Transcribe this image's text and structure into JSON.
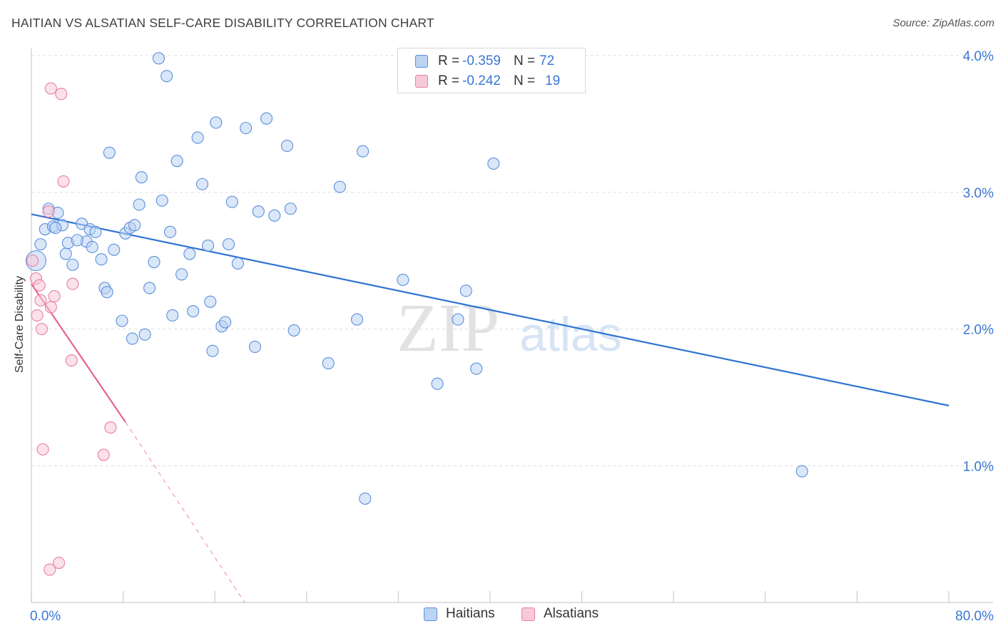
{
  "title": "HAITIAN VS ALSATIAN SELF-CARE DISABILITY CORRELATION CHART",
  "source": "Source: ZipAtlas.com",
  "watermark": {
    "zip": "ZIP",
    "atlas": "atlas"
  },
  "legend": {
    "haitians": {
      "r_label": "R =",
      "r_value": "-0.359",
      "n_label": "N =",
      "n_value": "72"
    },
    "alsatians": {
      "r_label": "R =",
      "r_value": "-0.242",
      "n_label": "N =",
      "n_value": "19"
    }
  },
  "bottom_legend": {
    "haitians": "Haitians",
    "alsatians": "Alsatians"
  },
  "chart_data": {
    "type": "scatter",
    "title": "HAITIAN VS ALSATIAN SELF-CARE DISABILITY CORRELATION CHART",
    "xlabel": "",
    "ylabel": "Self-Care Disability",
    "xlim": [
      0,
      80
    ],
    "ylim": [
      0,
      4.2
    ],
    "x_tick_labels": [
      "0.0%",
      "80.0%"
    ],
    "y_ticks": [
      1.0,
      2.0,
      3.0,
      4.0
    ],
    "y_tick_labels": [
      "1.0%",
      "2.0%",
      "3.0%",
      "4.0%"
    ],
    "colors": {
      "haitians": "#5b8fdc",
      "haitians_fill": "#bcd3f2",
      "alsatians": "#e87fa0",
      "alsatians_fill": "#f7c9d7",
      "haitians_line": "#2f74d0",
      "alsatians_line": "#e8628f",
      "tick_text": "#3a78d4",
      "grid": "#dddddd"
    },
    "series": [
      {
        "name": "Haitians",
        "trend": {
          "x0": 0,
          "y0": 2.84,
          "x1": 80,
          "y1": 1.44
        },
        "points": [
          [
            0.4,
            2.5,
            "big"
          ],
          [
            0.8,
            2.62
          ],
          [
            1.2,
            2.73
          ],
          [
            1.5,
            2.88
          ],
          [
            1.9,
            2.75
          ],
          [
            2.3,
            2.85
          ],
          [
            2.7,
            2.76
          ],
          [
            3.0,
            2.55
          ],
          [
            3.2,
            2.63
          ],
          [
            3.6,
            2.47
          ],
          [
            4.4,
            2.77
          ],
          [
            4.8,
            2.64
          ],
          [
            5.1,
            2.73
          ],
          [
            5.3,
            2.6
          ],
          [
            5.6,
            2.71
          ],
          [
            6.1,
            2.51
          ],
          [
            6.4,
            2.3
          ],
          [
            6.6,
            2.27
          ],
          [
            6.8,
            3.29
          ],
          [
            7.2,
            2.58
          ],
          [
            7.9,
            2.06
          ],
          [
            8.2,
            2.7
          ],
          [
            8.6,
            2.74
          ],
          [
            8.8,
            1.93
          ],
          [
            9.4,
            2.91
          ],
          [
            9.6,
            3.11
          ],
          [
            9.9,
            1.96
          ],
          [
            10.3,
            2.3
          ],
          [
            10.7,
            2.49
          ],
          [
            11.1,
            3.98
          ],
          [
            11.4,
            2.94
          ],
          [
            11.8,
            3.85
          ],
          [
            12.1,
            2.71
          ],
          [
            12.3,
            2.1
          ],
          [
            12.7,
            3.23
          ],
          [
            13.1,
            2.4
          ],
          [
            13.8,
            2.55
          ],
          [
            14.1,
            2.13
          ],
          [
            14.5,
            3.4
          ],
          [
            14.9,
            3.06
          ],
          [
            15.4,
            2.61
          ],
          [
            15.6,
            2.2
          ],
          [
            15.8,
            1.84
          ],
          [
            16.1,
            3.51
          ],
          [
            16.6,
            2.02
          ],
          [
            16.9,
            2.05
          ],
          [
            17.2,
            2.62
          ],
          [
            17.5,
            2.93
          ],
          [
            18.0,
            2.48
          ],
          [
            18.7,
            3.47
          ],
          [
            19.5,
            1.87
          ],
          [
            19.8,
            2.86
          ],
          [
            20.5,
            3.54
          ],
          [
            21.2,
            2.83
          ],
          [
            22.3,
            3.34
          ],
          [
            22.6,
            2.88
          ],
          [
            22.9,
            1.99
          ],
          [
            25.9,
            1.75
          ],
          [
            26.9,
            3.04
          ],
          [
            28.4,
            2.07
          ],
          [
            28.9,
            3.3
          ],
          [
            29.1,
            0.76
          ],
          [
            32.4,
            2.36
          ],
          [
            35.4,
            1.6
          ],
          [
            37.2,
            2.07
          ],
          [
            37.9,
            2.28
          ],
          [
            38.8,
            1.71
          ],
          [
            40.3,
            3.21
          ],
          [
            67.2,
            0.96
          ],
          [
            2.1,
            2.74
          ],
          [
            9.0,
            2.76
          ],
          [
            4.0,
            2.65
          ]
        ]
      },
      {
        "name": "Alsatians",
        "trend": {
          "x0": 0,
          "y0": 2.33,
          "x1": 8.2,
          "y1": 1.32,
          "dash_x1": 18.6,
          "dash_y1": 0.0
        },
        "points": [
          [
            0.1,
            2.5
          ],
          [
            0.4,
            2.37
          ],
          [
            0.5,
            2.1
          ],
          [
            0.7,
            2.32
          ],
          [
            0.8,
            2.21
          ],
          [
            0.9,
            2.0
          ],
          [
            1.0,
            1.12
          ],
          [
            1.5,
            2.86
          ],
          [
            1.6,
            0.24
          ],
          [
            1.7,
            3.76
          ],
          [
            1.7,
            2.16
          ],
          [
            2.0,
            2.24
          ],
          [
            2.4,
            0.29
          ],
          [
            2.6,
            3.72
          ],
          [
            2.8,
            3.08
          ],
          [
            3.5,
            1.77
          ],
          [
            3.6,
            2.33
          ],
          [
            6.3,
            1.08
          ],
          [
            6.9,
            1.28
          ]
        ]
      }
    ]
  }
}
